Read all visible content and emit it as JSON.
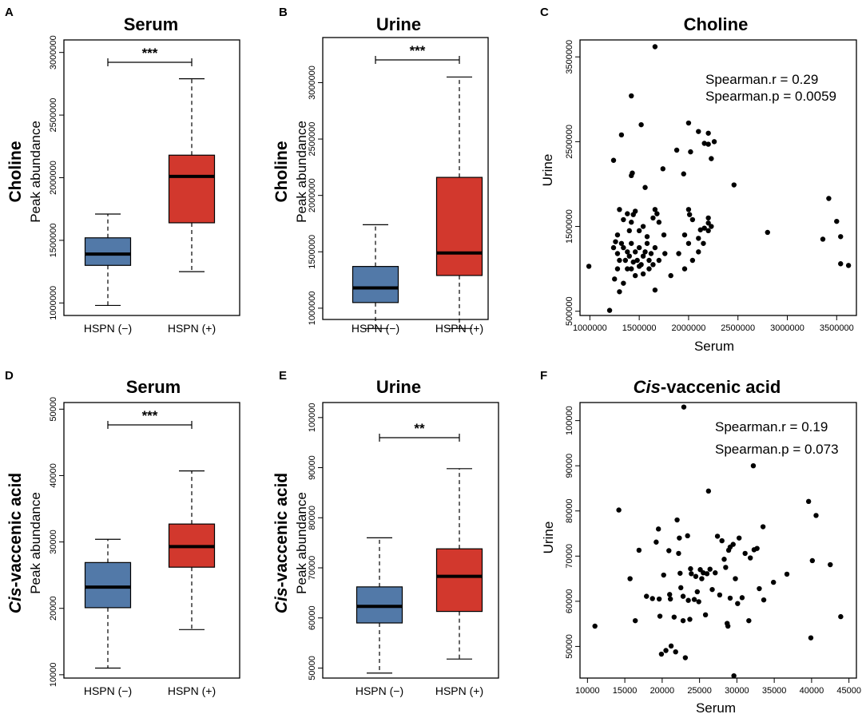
{
  "colors": {
    "negative": "#4e79a7",
    "positive": "#d1372f",
    "negative_hex": "#5279a8",
    "positive_hex": "#d2382d",
    "stroke": "#000000"
  },
  "chart_data": [
    {
      "id": "A",
      "panel_label": "A",
      "type": "box",
      "title": "Serum",
      "row_label": "Choline",
      "ylabel": "Peak abundance",
      "categories": [
        "HSPN (−)",
        "HSPN (+)"
      ],
      "ylim": [
        900000,
        3100000
      ],
      "yticks": [
        1000000,
        1500000,
        2000000,
        2500000,
        3000000
      ],
      "ytick_labels": [
        "1000000",
        "1500000",
        "2000000",
        "2500000",
        "3000000"
      ],
      "boxes": [
        {
          "min": 980000,
          "q1": 1300000,
          "median": 1390000,
          "q3": 1520000,
          "max": 1710000
        },
        {
          "min": 1250000,
          "q1": 1640000,
          "median": 2010000,
          "q3": 2180000,
          "max": 2790000
        }
      ],
      "significance": "***"
    },
    {
      "id": "B",
      "panel_label": "B",
      "type": "box",
      "title": "Urine",
      "row_label": "Choline",
      "ylabel": "Peak abundance",
      "categories": [
        "HSPN (−)",
        "HSPN (+)"
      ],
      "ylim": [
        900000,
        3400000
      ],
      "yticks": [
        1000000,
        1500000,
        2000000,
        2500000,
        3000000
      ],
      "ytick_labels": [
        "1000000",
        "1500000",
        "2000000",
        "2500000",
        "3000000"
      ],
      "boxes": [
        {
          "min": 820000,
          "q1": 1050000,
          "median": 1180000,
          "q3": 1370000,
          "max": 1740000
        },
        {
          "min": 820000,
          "q1": 1290000,
          "median": 1490000,
          "q3": 2160000,
          "max": 3050000
        }
      ],
      "significance": "***"
    },
    {
      "id": "C",
      "panel_label": "C",
      "type": "scatter",
      "title": "Choline",
      "xlabel": "Serum",
      "ylabel": "Urine",
      "xlim": [
        900000,
        3700000
      ],
      "ylim": [
        450000,
        3700000
      ],
      "xticks": [
        1000000,
        1500000,
        2000000,
        2500000,
        3000000,
        3500000
      ],
      "xtick_labels": [
        "1000000",
        "1500000",
        "2000000",
        "2500000",
        "3000000",
        "3500000"
      ],
      "yticks": [
        500000,
        1500000,
        2500000,
        3500000
      ],
      "ytick_labels": [
        "500000",
        "1500000",
        "2500000",
        "3500000"
      ],
      "annotations": [
        "Spearman.r = 0.29",
        "Spearman.p = 0.0059"
      ],
      "points": [
        [
          990000,
          1030000
        ],
        [
          1200000,
          510000
        ],
        [
          1250000,
          880000
        ],
        [
          1240000,
          1250000
        ],
        [
          1260000,
          1320000
        ],
        [
          1280000,
          1180000
        ],
        [
          1300000,
          1100000
        ],
        [
          1320000,
          1300000
        ],
        [
          1340000,
          1250000
        ],
        [
          1360000,
          1100000
        ],
        [
          1380000,
          1200000
        ],
        [
          1400000,
          1150000
        ],
        [
          1420000,
          1300000
        ],
        [
          1440000,
          1080000
        ],
        [
          1460000,
          1200000
        ],
        [
          1480000,
          1100000
        ],
        [
          1500000,
          1250000
        ],
        [
          1520000,
          1050000
        ],
        [
          1540000,
          1150000
        ],
        [
          1560000,
          1200000
        ],
        [
          1580000,
          1300000
        ],
        [
          1600000,
          1100000
        ],
        [
          1620000,
          1180000
        ],
        [
          1640000,
          1050000
        ],
        [
          1660000,
          1250000
        ],
        [
          1280000,
          1000000
        ],
        [
          1300000,
          730000
        ],
        [
          1340000,
          830000
        ],
        [
          1380000,
          1000000
        ],
        [
          1420000,
          1000000
        ],
        [
          1460000,
          920000
        ],
        [
          1500000,
          1030000
        ],
        [
          1540000,
          940000
        ],
        [
          1600000,
          1000000
        ],
        [
          1660000,
          750000
        ],
        [
          1700000,
          1100000
        ],
        [
          1760000,
          1180000
        ],
        [
          1820000,
          920000
        ],
        [
          1960000,
          1000000
        ],
        [
          1400000,
          1450000
        ],
        [
          1420000,
          1550000
        ],
        [
          1440000,
          1640000
        ],
        [
          1460000,
          1680000
        ],
        [
          1500000,
          1450000
        ],
        [
          1540000,
          1500000
        ],
        [
          1580000,
          1380000
        ],
        [
          1640000,
          1600000
        ],
        [
          1660000,
          1700000
        ],
        [
          1680000,
          1650000
        ],
        [
          1700000,
          1550000
        ],
        [
          1750000,
          1400000
        ],
        [
          1300000,
          1700000
        ],
        [
          1340000,
          1580000
        ],
        [
          1380000,
          1650000
        ],
        [
          1240000,
          2280000
        ],
        [
          1280000,
          1400000
        ],
        [
          1420000,
          2100000
        ],
        [
          1430000,
          2130000
        ],
        [
          1560000,
          1960000
        ],
        [
          1420000,
          3040000
        ],
        [
          1520000,
          2700000
        ],
        [
          1320000,
          2580000
        ],
        [
          1660000,
          3620000
        ],
        [
          1740000,
          2180000
        ],
        [
          1880000,
          2400000
        ],
        [
          1950000,
          2120000
        ],
        [
          2000000,
          1700000
        ],
        [
          2010000,
          1640000
        ],
        [
          2040000,
          1580000
        ],
        [
          2000000,
          2720000
        ],
        [
          2020000,
          2380000
        ],
        [
          2100000,
          2620000
        ],
        [
          2160000,
          2480000
        ],
        [
          2200000,
          2600000
        ],
        [
          2200000,
          2470000
        ],
        [
          2260000,
          2500000
        ],
        [
          2230000,
          2300000
        ],
        [
          2100000,
          1360000
        ],
        [
          2100000,
          1200000
        ],
        [
          2120000,
          1460000
        ],
        [
          2160000,
          1480000
        ],
        [
          2200000,
          1540000
        ],
        [
          2200000,
          1600000
        ],
        [
          2200000,
          1450000
        ],
        [
          2230000,
          1500000
        ],
        [
          2150000,
          1300000
        ],
        [
          2000000,
          1300000
        ],
        [
          1960000,
          1400000
        ],
        [
          2460000,
          1990000
        ],
        [
          2800000,
          1430000
        ],
        [
          3360000,
          1350000
        ],
        [
          3420000,
          1830000
        ],
        [
          3500000,
          1560000
        ],
        [
          3540000,
          1380000
        ],
        [
          3540000,
          1060000
        ],
        [
          3620000,
          1040000
        ],
        [
          2040000,
          1100000
        ],
        [
          1900000,
          1180000
        ]
      ]
    },
    {
      "id": "D",
      "panel_label": "D",
      "type": "box",
      "title": "Serum",
      "row_label_italic": "Cis",
      "row_label_rest": "-vaccenic acid",
      "ylabel": "Peak abundance",
      "categories": [
        "HSPN (−)",
        "HSPN (+)"
      ],
      "ylim": [
        9500,
        51000
      ],
      "yticks": [
        10000,
        20000,
        30000,
        40000,
        50000
      ],
      "ytick_labels": [
        "10000",
        "20000",
        "30000",
        "40000",
        "50000"
      ],
      "boxes": [
        {
          "min": 11000,
          "q1": 20100,
          "median": 23200,
          "q3": 26900,
          "max": 30400
        },
        {
          "min": 16800,
          "q1": 26200,
          "median": 29300,
          "q3": 32700,
          "max": 40700
        }
      ],
      "significance": "***"
    },
    {
      "id": "E",
      "panel_label": "E",
      "type": "box",
      "title": "Urine",
      "row_label_italic": "Cis",
      "row_label_rest": "-vaccenic acid",
      "ylabel": "Peak abundance",
      "categories": [
        "HSPN (−)",
        "HSPN (+)"
      ],
      "ylim": [
        48000,
        103000
      ],
      "yticks": [
        50000,
        60000,
        70000,
        80000,
        90000,
        100000
      ],
      "ytick_labels": [
        "50000",
        "60000",
        "70000",
        "80000",
        "90000",
        "100000"
      ],
      "boxes": [
        {
          "min": 49000,
          "q1": 59000,
          "median": 62300,
          "q3": 66200,
          "max": 76000
        },
        {
          "min": 51800,
          "q1": 61300,
          "median": 68300,
          "q3": 73800,
          "max": 89800
        }
      ],
      "significance": "**"
    },
    {
      "id": "F",
      "panel_label": "F",
      "type": "scatter",
      "title_italic": "Cis",
      "title_rest": "-vaccenic acid",
      "xlabel": "Serum",
      "ylabel": "Urine",
      "xlim": [
        9000,
        46000
      ],
      "ylim": [
        43000,
        104000
      ],
      "xticks": [
        10000,
        15000,
        20000,
        25000,
        30000,
        35000,
        40000,
        45000
      ],
      "xtick_labels": [
        "10000",
        "15000",
        "20000",
        "25000",
        "30000",
        "35000",
        "40000",
        "45000"
      ],
      "yticks": [
        50000,
        60000,
        70000,
        80000,
        90000,
        100000
      ],
      "ytick_labels": [
        "50000",
        "60000",
        "70000",
        "80000",
        "90000",
        "100000"
      ],
      "annotations": [
        "Spearman.r = 0.19",
        "Spearman.p = 0.073"
      ],
      "points": [
        [
          11000,
          54500
        ],
        [
          14200,
          80200
        ],
        [
          15700,
          65000
        ],
        [
          16400,
          55700
        ],
        [
          16900,
          71300
        ],
        [
          17900,
          61100
        ],
        [
          18700,
          60600
        ],
        [
          19200,
          73100
        ],
        [
          19500,
          76000
        ],
        [
          19600,
          60500
        ],
        [
          19700,
          56700
        ],
        [
          19900,
          48300
        ],
        [
          20200,
          65800
        ],
        [
          20500,
          49100
        ],
        [
          20900,
          71200
        ],
        [
          21000,
          61500
        ],
        [
          21100,
          60500
        ],
        [
          21200,
          50100
        ],
        [
          21600,
          56500
        ],
        [
          21800,
          48800
        ],
        [
          22000,
          78000
        ],
        [
          22200,
          70600
        ],
        [
          22300,
          74000
        ],
        [
          22400,
          66200
        ],
        [
          22500,
          63000
        ],
        [
          22800,
          61100
        ],
        [
          22800,
          55700
        ],
        [
          22900,
          103000
        ],
        [
          23100,
          47500
        ],
        [
          23400,
          74500
        ],
        [
          23500,
          60200
        ],
        [
          23700,
          56000
        ],
        [
          23800,
          67200
        ],
        [
          23900,
          66100
        ],
        [
          24300,
          60400
        ],
        [
          24500,
          65500
        ],
        [
          24700,
          62100
        ],
        [
          24900,
          59900
        ],
        [
          25100,
          67000
        ],
        [
          25300,
          65000
        ],
        [
          25500,
          66300
        ],
        [
          25800,
          57000
        ],
        [
          26000,
          66100
        ],
        [
          26200,
          84400
        ],
        [
          26400,
          67100
        ],
        [
          26700,
          62600
        ],
        [
          27100,
          66300
        ],
        [
          27400,
          74400
        ],
        [
          27700,
          61400
        ],
        [
          28000,
          73400
        ],
        [
          28300,
          69300
        ],
        [
          28500,
          67500
        ],
        [
          28700,
          55100
        ],
        [
          28800,
          54500
        ],
        [
          28900,
          71300
        ],
        [
          29100,
          72000
        ],
        [
          29100,
          60700
        ],
        [
          29500,
          72600
        ],
        [
          29600,
          43500
        ],
        [
          29800,
          65000
        ],
        [
          30100,
          59500
        ],
        [
          30300,
          74000
        ],
        [
          30700,
          60800
        ],
        [
          31100,
          70600
        ],
        [
          31600,
          55700
        ],
        [
          31800,
          69600
        ],
        [
          32200,
          90000
        ],
        [
          32300,
          71400
        ],
        [
          32700,
          71700
        ],
        [
          33000,
          62800
        ],
        [
          33500,
          76500
        ],
        [
          33600,
          60300
        ],
        [
          34900,
          64200
        ],
        [
          36700,
          66000
        ],
        [
          39600,
          82100
        ],
        [
          39900,
          51900
        ],
        [
          40100,
          69000
        ],
        [
          40600,
          79000
        ],
        [
          42500,
          68100
        ],
        [
          43900,
          56600
        ]
      ]
    }
  ]
}
